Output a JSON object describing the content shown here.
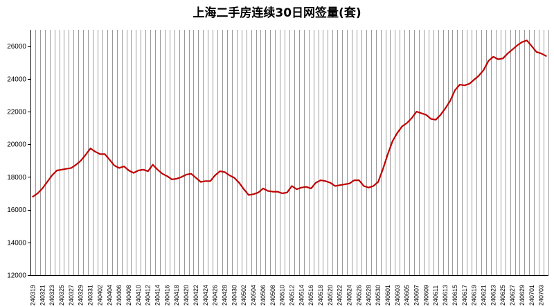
{
  "chart_data": {
    "type": "line",
    "title": "上海二手房连续30日网签量(套)",
    "xlabel": "",
    "ylabel": "",
    "ylim": [
      12000,
      27000
    ],
    "yticks": [
      12000,
      14000,
      16000,
      18000,
      20000,
      22000,
      24000,
      26000
    ],
    "grid": "vertical",
    "legend": "none",
    "line_color": "#c00000",
    "x_tick_labels": [
      "240319",
      "240321",
      "240323",
      "240325",
      "240327",
      "240329",
      "240331",
      "240402",
      "240404",
      "240406",
      "240408",
      "240410",
      "240412",
      "240414",
      "240416",
      "240418",
      "240420",
      "240422",
      "240424",
      "240426",
      "240428",
      "240430",
      "240502",
      "240504",
      "240506",
      "240508",
      "240510",
      "240512",
      "240514",
      "240516",
      "240518",
      "240520",
      "240522",
      "240524",
      "240526",
      "240528",
      "240530",
      "240601",
      "240603",
      "240605",
      "240607",
      "240609",
      "240611",
      "240613",
      "240615",
      "240617",
      "240619",
      "240621",
      "240623",
      "240625",
      "240627",
      "240629",
      "240701",
      "240703"
    ],
    "x": [
      "240319",
      "240320",
      "240321",
      "240322",
      "240323",
      "240324",
      "240325",
      "240326",
      "240327",
      "240328",
      "240329",
      "240330",
      "240331",
      "240401",
      "240402",
      "240403",
      "240404",
      "240405",
      "240406",
      "240407",
      "240408",
      "240409",
      "240410",
      "240411",
      "240412",
      "240413",
      "240414",
      "240415",
      "240416",
      "240417",
      "240418",
      "240419",
      "240420",
      "240421",
      "240422",
      "240423",
      "240424",
      "240425",
      "240426",
      "240427",
      "240428",
      "240429",
      "240430",
      "240501",
      "240502",
      "240503",
      "240504",
      "240505",
      "240506",
      "240507",
      "240508",
      "240509",
      "240510",
      "240511",
      "240512",
      "240513",
      "240514",
      "240515",
      "240516",
      "240517",
      "240518",
      "240519",
      "240520",
      "240521",
      "240522",
      "240523",
      "240524",
      "240525",
      "240526",
      "240527",
      "240528",
      "240529",
      "240530",
      "240531",
      "240601",
      "240602",
      "240603",
      "240604",
      "240605",
      "240606",
      "240607",
      "240608",
      "240609",
      "240610",
      "240611",
      "240612",
      "240613",
      "240614",
      "240615",
      "240616",
      "240617",
      "240618",
      "240619",
      "240620",
      "240621",
      "240622",
      "240623",
      "240624",
      "240625",
      "240626",
      "240627",
      "240628",
      "240629",
      "240630",
      "240701",
      "240702",
      "240703",
      "240704"
    ],
    "series": [
      {
        "values": [
          16800,
          17000,
          17300,
          17700,
          18100,
          18400,
          18450,
          18500,
          18550,
          18750,
          19000,
          19350,
          19750,
          19550,
          19400,
          19400,
          19050,
          18700,
          18550,
          18650,
          18400,
          18250,
          18400,
          18450,
          18350,
          18750,
          18450,
          18200,
          18050,
          17850,
          17900,
          18000,
          18150,
          18200,
          17950,
          17700,
          17750,
          17750,
          18100,
          18350,
          18300,
          18100,
          17950,
          17650,
          17250,
          16900,
          16950,
          17050,
          17300,
          17150,
          17100,
          17100,
          17000,
          17050,
          17450,
          17250,
          17350,
          17400,
          17300,
          17650,
          17800,
          17750,
          17650,
          17450,
          17500,
          17550,
          17600,
          17800,
          17800,
          17450,
          17350,
          17450,
          17700,
          18500,
          19400,
          20200,
          20700,
          21100,
          21300,
          21600,
          22000,
          21900,
          21800,
          21550,
          21500,
          21800,
          22200,
          22650,
          23300,
          23650,
          23600,
          23700,
          23950,
          24200,
          24550,
          25100,
          25350,
          25200,
          25250,
          25550,
          25800,
          26050,
          26250,
          26350,
          26000,
          25650,
          25550,
          25400
        ]
      }
    ]
  }
}
